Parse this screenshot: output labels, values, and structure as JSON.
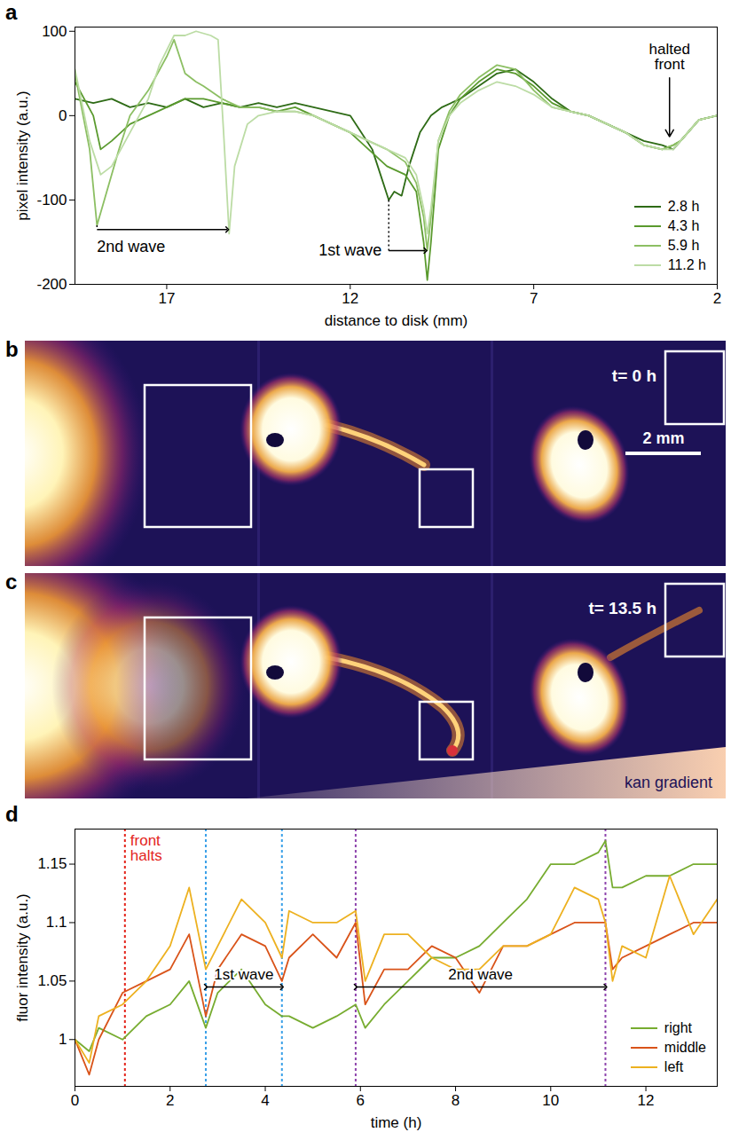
{
  "chart_data": [
    {
      "type": "line",
      "panel": "a",
      "xlabel": "distance to disk (mm)",
      "ylabel": "pixel intensity (a.u.)",
      "xlim": [
        19.5,
        2
      ],
      "xticks": [
        17,
        12,
        7,
        2
      ],
      "ylim": [
        -200,
        105
      ],
      "yticks": [
        -200,
        -100,
        0,
        100
      ],
      "legend": "bottom-right",
      "series": [
        {
          "name": "2.8 h",
          "color": "#2e6b16",
          "x": [
            19.5,
            19,
            18.5,
            18,
            17.5,
            17,
            16.5,
            16,
            15.5,
            15,
            14.5,
            14,
            13.5,
            13,
            12.5,
            12,
            11.7,
            11.4,
            11.1,
            10.95,
            10.8,
            10.6,
            10.4,
            10.1,
            9.8,
            9.5,
            9,
            8.5,
            8,
            7.5,
            7,
            6.5,
            6,
            5.5,
            5,
            4.5,
            4,
            3.5,
            3.2,
            3,
            2.5,
            2
          ],
          "values": [
            20,
            15,
            20,
            10,
            15,
            10,
            20,
            10,
            15,
            10,
            15,
            10,
            15,
            10,
            5,
            0,
            -20,
            -40,
            -80,
            -100,
            -90,
            -95,
            -60,
            -20,
            0,
            10,
            20,
            35,
            50,
            55,
            40,
            20,
            5,
            0,
            -10,
            -20,
            -30,
            -35,
            -40,
            -30,
            -5,
            0
          ]
        },
        {
          "name": "4.3 h",
          "color": "#5a9a2e",
          "x": [
            19.5,
            19,
            18.8,
            18.5,
            18,
            17.5,
            17,
            16.5,
            16,
            15.5,
            15,
            14.5,
            14,
            13.5,
            13,
            12.5,
            12,
            11.5,
            11,
            10.5,
            10.2,
            10,
            9.9,
            9.8,
            9.6,
            9.3,
            9,
            8.5,
            8,
            7.5,
            7,
            6.5,
            6,
            5.5,
            5,
            4.5,
            4,
            3.5,
            3.2,
            3,
            2.5,
            2
          ],
          "values": [
            40,
            0,
            -40,
            -30,
            -10,
            0,
            10,
            20,
            20,
            15,
            10,
            10,
            5,
            10,
            0,
            -10,
            -20,
            -40,
            -60,
            -70,
            -90,
            -150,
            -195,
            -150,
            -40,
            0,
            20,
            40,
            55,
            50,
            35,
            15,
            5,
            0,
            -10,
            -20,
            -35,
            -40,
            -35,
            -30,
            -5,
            0
          ]
        },
        {
          "name": "5.9 h",
          "color": "#8cbf63",
          "x": [
            19.5,
            19.1,
            18.9,
            18.7,
            18.3,
            18,
            17.5,
            17,
            16.8,
            16.5,
            16.2,
            16,
            15.5,
            15,
            14.5,
            14,
            13.5,
            13,
            12.5,
            12,
            11.5,
            11,
            10.5,
            10.2,
            10,
            9.9,
            9.8,
            9.6,
            9.3,
            9,
            8.5,
            8,
            7.5,
            7,
            6.5,
            6,
            5.5,
            5,
            4.5,
            4,
            3.5,
            3.2,
            3,
            2.5,
            2
          ],
          "values": [
            50,
            -40,
            -130,
            -100,
            -40,
            0,
            30,
            70,
            90,
            50,
            40,
            35,
            20,
            10,
            10,
            5,
            5,
            0,
            -10,
            -20,
            -30,
            -40,
            -55,
            -80,
            -120,
            -160,
            -120,
            -30,
            5,
            25,
            45,
            60,
            55,
            30,
            10,
            5,
            0,
            -10,
            -20,
            -35,
            -40,
            -35,
            -30,
            -5,
            0
          ]
        },
        {
          "name": "11.2 h",
          "color": "#bcdca5",
          "x": [
            19.5,
            19.1,
            18.8,
            18.5,
            18,
            17.5,
            17.2,
            16.8,
            16.5,
            16.2,
            15.8,
            15.6,
            15.45,
            15.3,
            15.15,
            14.8,
            14.5,
            14,
            13.5,
            13,
            12.5,
            12,
            11.5,
            11,
            10.5,
            10.2,
            10,
            9.9,
            9.8,
            9.6,
            9.3,
            9,
            8.5,
            8,
            7.5,
            7,
            6.5,
            6,
            5.5,
            5,
            4.5,
            4,
            3.5,
            3.2,
            3,
            2.5,
            2
          ],
          "values": [
            55,
            -30,
            -70,
            -60,
            -20,
            20,
            60,
            95,
            95,
            100,
            95,
            90,
            -20,
            -140,
            -60,
            -10,
            0,
            5,
            5,
            0,
            -10,
            -20,
            -30,
            -40,
            -50,
            -70,
            -110,
            -140,
            -110,
            -30,
            0,
            15,
            30,
            40,
            35,
            25,
            10,
            5,
            0,
            -10,
            -20,
            -35,
            -40,
            -40,
            -30,
            -5,
            0
          ]
        }
      ],
      "annotations": [
        {
          "text": "2nd wave",
          "x_start": 18.9,
          "x_end": 15.35,
          "y": -135,
          "y_from": -130
        },
        {
          "text": "1st wave",
          "x_start": 10.95,
          "x_end": 9.95,
          "y": -160,
          "y_from": -100
        },
        {
          "text": "halted front",
          "x": 3.3,
          "y": 70,
          "y_end": -25
        }
      ]
    },
    {
      "type": "image",
      "panel": "b",
      "time": "t= 0 h",
      "scale_bar": "2 mm"
    },
    {
      "type": "image",
      "panel": "c",
      "time": "t= 13.5 h",
      "gradient_label": "kan gradient"
    },
    {
      "type": "line",
      "panel": "d",
      "xlabel": "time (h)",
      "ylabel": "fluor intensity (a.u.)",
      "xlim": [
        0,
        13.5
      ],
      "xticks": [
        0,
        2,
        4,
        6,
        8,
        10,
        12
      ],
      "ylim": [
        0.96,
        1.18
      ],
      "yticks": [
        1,
        1.05,
        1.1,
        1.15
      ],
      "legend": "bottom-right",
      "x": [
        0,
        0.3,
        0.5,
        1,
        1.5,
        2,
        2.4,
        2.75,
        3,
        3.5,
        4,
        4.35,
        4.5,
        5,
        5.5,
        5.9,
        6.1,
        6.5,
        7,
        7.5,
        8,
        8.5,
        9,
        9.5,
        10,
        10.5,
        11,
        11.15,
        11.3,
        11.5,
        12,
        12.5,
        13,
        13.5
      ],
      "series": [
        {
          "name": "right",
          "color": "#77ac30",
          "values": [
            1.0,
            0.99,
            1.01,
            1.0,
            1.02,
            1.03,
            1.05,
            1.01,
            1.04,
            1.06,
            1.03,
            1.02,
            1.02,
            1.01,
            1.02,
            1.03,
            1.01,
            1.03,
            1.05,
            1.07,
            1.07,
            1.08,
            1.1,
            1.12,
            1.15,
            1.15,
            1.16,
            1.17,
            1.13,
            1.13,
            1.14,
            1.14,
            1.15,
            1.15
          ]
        },
        {
          "name": "middle",
          "color": "#d95319",
          "values": [
            1.0,
            0.97,
            1.0,
            1.04,
            1.05,
            1.06,
            1.09,
            1.02,
            1.06,
            1.09,
            1.08,
            1.05,
            1.07,
            1.09,
            1.07,
            1.1,
            1.03,
            1.06,
            1.06,
            1.08,
            1.07,
            1.04,
            1.08,
            1.08,
            1.09,
            1.1,
            1.1,
            1.1,
            1.06,
            1.07,
            1.08,
            1.09,
            1.1,
            1.1
          ]
        },
        {
          "name": "left",
          "color": "#edb120",
          "values": [
            1.0,
            0.98,
            1.02,
            1.03,
            1.05,
            1.08,
            1.13,
            1.06,
            1.08,
            1.12,
            1.1,
            1.07,
            1.11,
            1.1,
            1.1,
            1.11,
            1.05,
            1.09,
            1.09,
            1.07,
            1.06,
            1.06,
            1.08,
            1.08,
            1.09,
            1.13,
            1.12,
            1.1,
            1.05,
            1.08,
            1.07,
            1.14,
            1.09,
            1.12
          ]
        }
      ],
      "vlines": [
        {
          "x": 1.05,
          "color": "#e3241b",
          "text": "front halts"
        },
        {
          "x": 2.75,
          "color": "#3aa0e8"
        },
        {
          "x": 4.35,
          "color": "#3aa0e8"
        },
        {
          "x": 5.9,
          "color": "#8e44ad"
        },
        {
          "x": 11.15,
          "color": "#8e44ad"
        }
      ],
      "annotations": [
        {
          "text": "1st wave",
          "x_start": 2.75,
          "x_end": 4.35,
          "y": 1.045
        },
        {
          "text": "2nd wave",
          "x_start": 5.9,
          "x_end": 11.15,
          "y": 1.045
        }
      ]
    }
  ]
}
